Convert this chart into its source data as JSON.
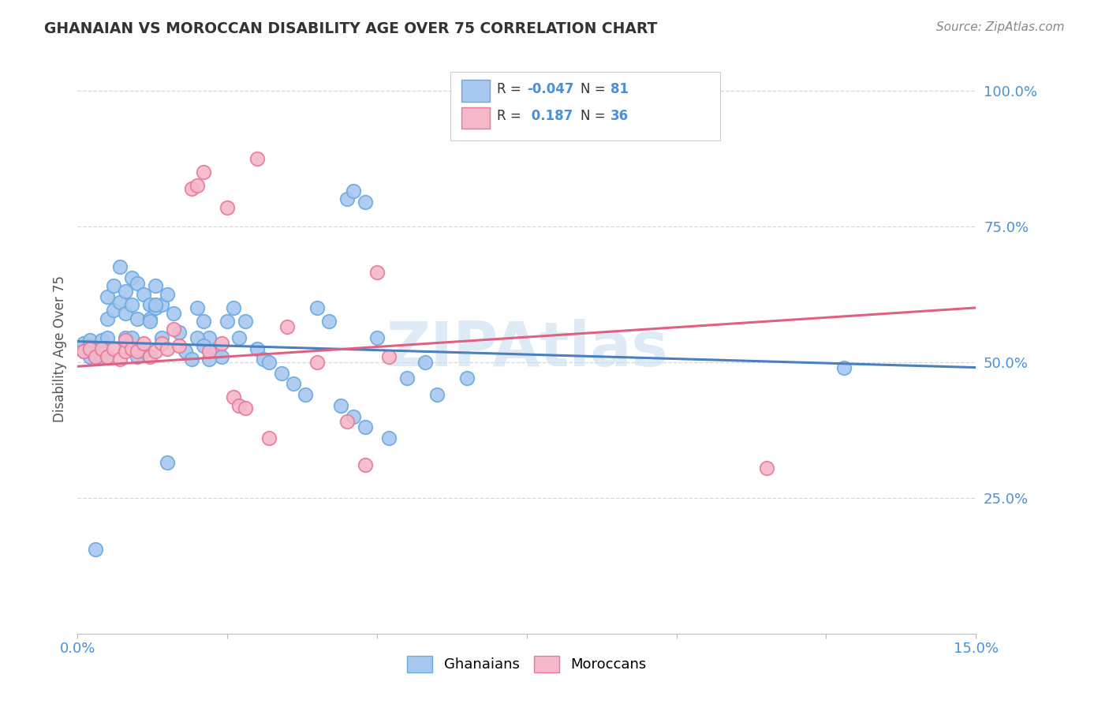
{
  "title": "GHANAIAN VS MOROCCAN DISABILITY AGE OVER 75 CORRELATION CHART",
  "source": "Source: ZipAtlas.com",
  "ylabel": "Disability Age Over 75",
  "xlim": [
    0.0,
    0.15
  ],
  "ylim": [
    0.0,
    1.05
  ],
  "xticks": [
    0.0,
    0.025,
    0.05,
    0.075,
    0.1,
    0.125,
    0.15
  ],
  "xticklabels": [
    "0.0%",
    "",
    "",
    "",
    "",
    "",
    "15.0%"
  ],
  "yticks": [
    0.25,
    0.5,
    0.75,
    1.0
  ],
  "yticklabels": [
    "25.0%",
    "50.0%",
    "75.0%",
    "100.0%"
  ],
  "ghanaian_face": "#a8c8f0",
  "ghanaian_edge": "#6aaae0",
  "moroccan_face": "#f5b8c8",
  "moroccan_edge": "#e87898",
  "ghanaian_line": "#4a7fc0",
  "moroccan_line": "#e06080",
  "watermark_color": "#c8dff0",
  "axis_color": "#4a90d9",
  "grid_color": "#d0d8e8",
  "title_color": "#333333",
  "source_color": "#888888",
  "g_intercept": 0.538,
  "g_slope": -0.32,
  "m_intercept": 0.492,
  "m_slope": 0.72,
  "ghanaians_x": [
    0.001,
    0.001,
    0.002,
    0.002,
    0.002,
    0.002,
    0.003,
    0.003,
    0.003,
    0.004,
    0.004,
    0.004,
    0.004,
    0.005,
    0.005,
    0.005,
    0.005,
    0.006,
    0.006,
    0.007,
    0.007,
    0.008,
    0.008,
    0.008,
    0.009,
    0.009,
    0.01,
    0.01,
    0.011,
    0.012,
    0.012,
    0.013,
    0.013,
    0.014,
    0.015,
    0.016,
    0.017,
    0.018,
    0.019,
    0.02,
    0.021,
    0.022,
    0.023,
    0.024,
    0.025,
    0.026,
    0.027,
    0.028,
    0.03,
    0.031,
    0.032,
    0.034,
    0.036,
    0.038,
    0.04,
    0.042,
    0.044,
    0.046,
    0.048,
    0.05,
    0.052,
    0.055,
    0.058,
    0.06,
    0.065,
    0.045,
    0.046,
    0.048,
    0.02,
    0.021,
    0.022,
    0.009,
    0.01,
    0.011,
    0.012,
    0.013,
    0.014,
    0.015,
    0.128,
    0.003
  ],
  "ghanaians_y": [
    0.535,
    0.52,
    0.53,
    0.51,
    0.525,
    0.54,
    0.51,
    0.515,
    0.525,
    0.52,
    0.51,
    0.525,
    0.54,
    0.62,
    0.58,
    0.545,
    0.51,
    0.64,
    0.595,
    0.675,
    0.61,
    0.63,
    0.59,
    0.545,
    0.655,
    0.605,
    0.645,
    0.58,
    0.625,
    0.605,
    0.58,
    0.64,
    0.6,
    0.605,
    0.625,
    0.59,
    0.555,
    0.52,
    0.505,
    0.6,
    0.575,
    0.545,
    0.52,
    0.51,
    0.575,
    0.6,
    0.545,
    0.575,
    0.525,
    0.505,
    0.5,
    0.48,
    0.46,
    0.44,
    0.6,
    0.575,
    0.42,
    0.4,
    0.38,
    0.545,
    0.36,
    0.47,
    0.5,
    0.44,
    0.47,
    0.8,
    0.815,
    0.795,
    0.545,
    0.53,
    0.505,
    0.545,
    0.51,
    0.52,
    0.575,
    0.605,
    0.545,
    0.315,
    0.49,
    0.155
  ],
  "moroccans_x": [
    0.001,
    0.002,
    0.003,
    0.004,
    0.005,
    0.006,
    0.007,
    0.008,
    0.008,
    0.009,
    0.01,
    0.011,
    0.012,
    0.013,
    0.014,
    0.015,
    0.016,
    0.017,
    0.019,
    0.02,
    0.021,
    0.022,
    0.024,
    0.025,
    0.026,
    0.027,
    0.028,
    0.03,
    0.032,
    0.035,
    0.04,
    0.045,
    0.048,
    0.05,
    0.052,
    0.115
  ],
  "moroccans_y": [
    0.52,
    0.525,
    0.51,
    0.525,
    0.51,
    0.525,
    0.505,
    0.52,
    0.54,
    0.525,
    0.52,
    0.535,
    0.51,
    0.52,
    0.535,
    0.525,
    0.56,
    0.53,
    0.82,
    0.825,
    0.85,
    0.52,
    0.535,
    0.785,
    0.435,
    0.42,
    0.415,
    0.875,
    0.36,
    0.565,
    0.5,
    0.39,
    0.31,
    0.665,
    0.51,
    0.305
  ]
}
